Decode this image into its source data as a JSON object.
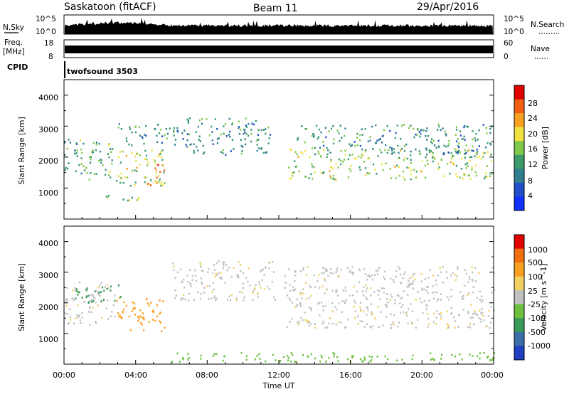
{
  "header": {
    "station": "Saskatoon (fitACF)",
    "beam": "Beam 11",
    "date": "29/Apr/2016"
  },
  "noise_panel": {
    "left_label": "N.Sky",
    "left_ticks": [
      "10^5",
      "10^0"
    ],
    "right_label": "N.Search",
    "right_ticks": [
      "10^5",
      "10^0"
    ]
  },
  "freq_panel": {
    "left_label_line1": "Freq.",
    "left_label_line2": "[MHz]",
    "left_ticks": [
      "18",
      "8"
    ],
    "right_label": "Nave",
    "right_ticks": [
      "60",
      "0"
    ]
  },
  "cpid_panel": {
    "label": "CPID",
    "program": "twofsound 3503"
  },
  "chart_data": [
    {
      "type": "heatmap",
      "name": "power",
      "ylabel": "Slant Range [km]",
      "ylim": [
        0,
        4500
      ],
      "y_ticks": [
        "1000",
        "2000",
        "3000",
        "4000"
      ],
      "colorbar_label": "Power [dB]",
      "colorbar_ticks": [
        "4",
        "8",
        "12",
        "16",
        "20",
        "24",
        "28"
      ],
      "colorbar_range": [
        0,
        31
      ],
      "colorbar_colors": [
        "#1030ff",
        "#2050c8",
        "#2f7f8f",
        "#3a9a6a",
        "#7fc84a",
        "#f0e040",
        "#f8a020",
        "#f06010",
        "#e00000"
      ],
      "regions": [
        {
          "t0": 0.0,
          "t1": 2.8,
          "r0": 1300,
          "r1": 2600,
          "level": 12
        },
        {
          "t0": 2.8,
          "t1": 5.6,
          "r0": 1100,
          "r1": 2300,
          "level": 16
        },
        {
          "t0": 4.6,
          "t1": 5.6,
          "r0": 1100,
          "r1": 1800,
          "level": 26
        },
        {
          "t0": 3.0,
          "t1": 6.8,
          "r0": 2400,
          "r1": 3100,
          "level": 10
        },
        {
          "t0": 6.8,
          "t1": 11.5,
          "r0": 2100,
          "r1": 3300,
          "level": 10
        },
        {
          "t0": 12.5,
          "t1": 24.0,
          "r0": 1300,
          "r1": 2300,
          "level": 16
        },
        {
          "t0": 13.0,
          "t1": 24.0,
          "r0": 2100,
          "r1": 3100,
          "level": 10
        },
        {
          "t0": 2.0,
          "t1": 4.2,
          "r0": 600,
          "r1": 850,
          "level": 14
        }
      ]
    },
    {
      "type": "heatmap",
      "name": "velocity",
      "ylabel": "Slant Range [km]",
      "ylim": [
        0,
        4500
      ],
      "y_ticks": [
        "1000",
        "2000",
        "3000",
        "4000"
      ],
      "xlabel": "Time UT",
      "x_ticks": [
        "00:00",
        "04:00",
        "08:00",
        "12:00",
        "16:00",
        "20:00",
        "00:00"
      ],
      "xlim": [
        0,
        24
      ],
      "colorbar_label": "Velocity [m s^-1]",
      "colorbar_ticks": [
        "1000",
        "500",
        "100",
        "25",
        "-25",
        "-100",
        "-500",
        "-1000"
      ],
      "colorbar_colors": [
        "#2040c0",
        "#3c6ea8",
        "#3a9a5a",
        "#6cc040",
        "#c0c0c0",
        "#f0d060",
        "#f8a020",
        "#f07010",
        "#e00000"
      ],
      "regions": [
        {
          "t0": 0.0,
          "t1": 2.8,
          "r0": 1300,
          "r1": 2700,
          "v": 0
        },
        {
          "t0": 2.8,
          "t1": 5.6,
          "r0": 1100,
          "r1": 2200,
          "v": -150
        },
        {
          "t0": 0.5,
          "t1": 3.2,
          "r0": 2000,
          "r1": 2600,
          "v": 100
        },
        {
          "t0": 6.0,
          "t1": 11.8,
          "r0": 2100,
          "r1": 3400,
          "v": 0
        },
        {
          "t0": 12.3,
          "t1": 24.0,
          "r0": 1200,
          "r1": 3200,
          "v": 0
        },
        {
          "t0": 6.0,
          "t1": 24.0,
          "r0": 100,
          "r1": 400,
          "v": 60
        }
      ]
    }
  ]
}
